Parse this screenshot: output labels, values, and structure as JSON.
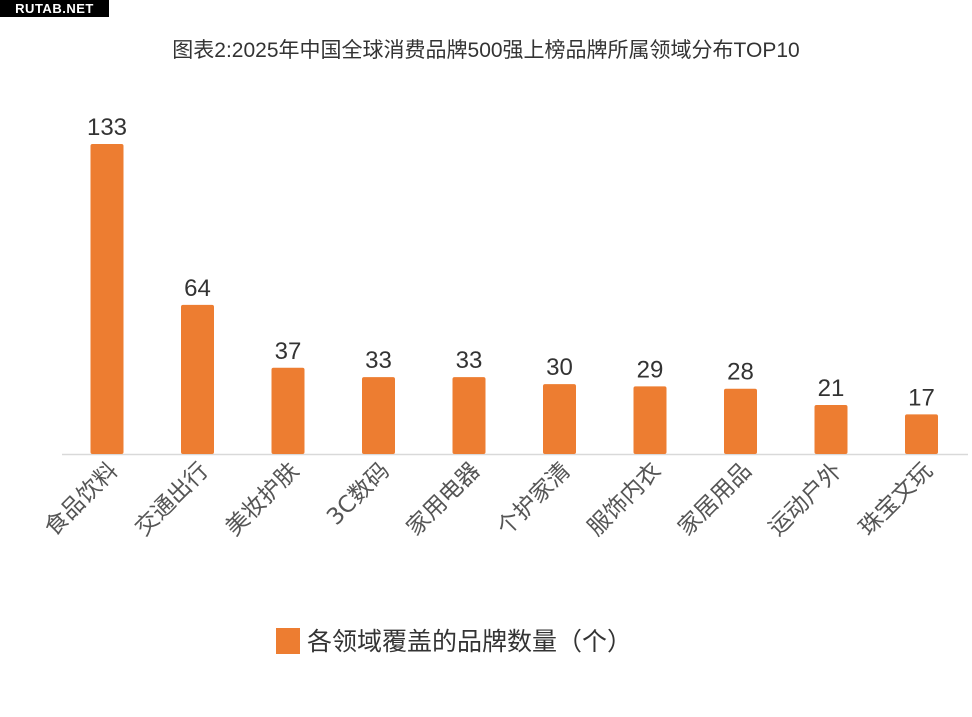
{
  "watermark": "RUTAB.NET",
  "chart_data": {
    "type": "bar",
    "title": "图表2:2025年中国全球消费品牌500强上榜品牌所属领域分布TOP10",
    "categories": [
      "食品饮料",
      "交通出行",
      "美妆护肤",
      "3C数码",
      "家用电器",
      "个护家清",
      "服饰内衣",
      "家居用品",
      "运动户外",
      "珠宝文玩"
    ],
    "series": [
      {
        "name": "各领域覆盖的品牌数量（个）",
        "values": [
          133,
          64,
          37,
          33,
          33,
          30,
          29,
          28,
          21,
          17
        ]
      }
    ],
    "xlabel": "",
    "ylabel": "",
    "ylim": [
      0,
      133
    ],
    "grid": false,
    "legend": "bottom",
    "color": "#ED7D31"
  }
}
